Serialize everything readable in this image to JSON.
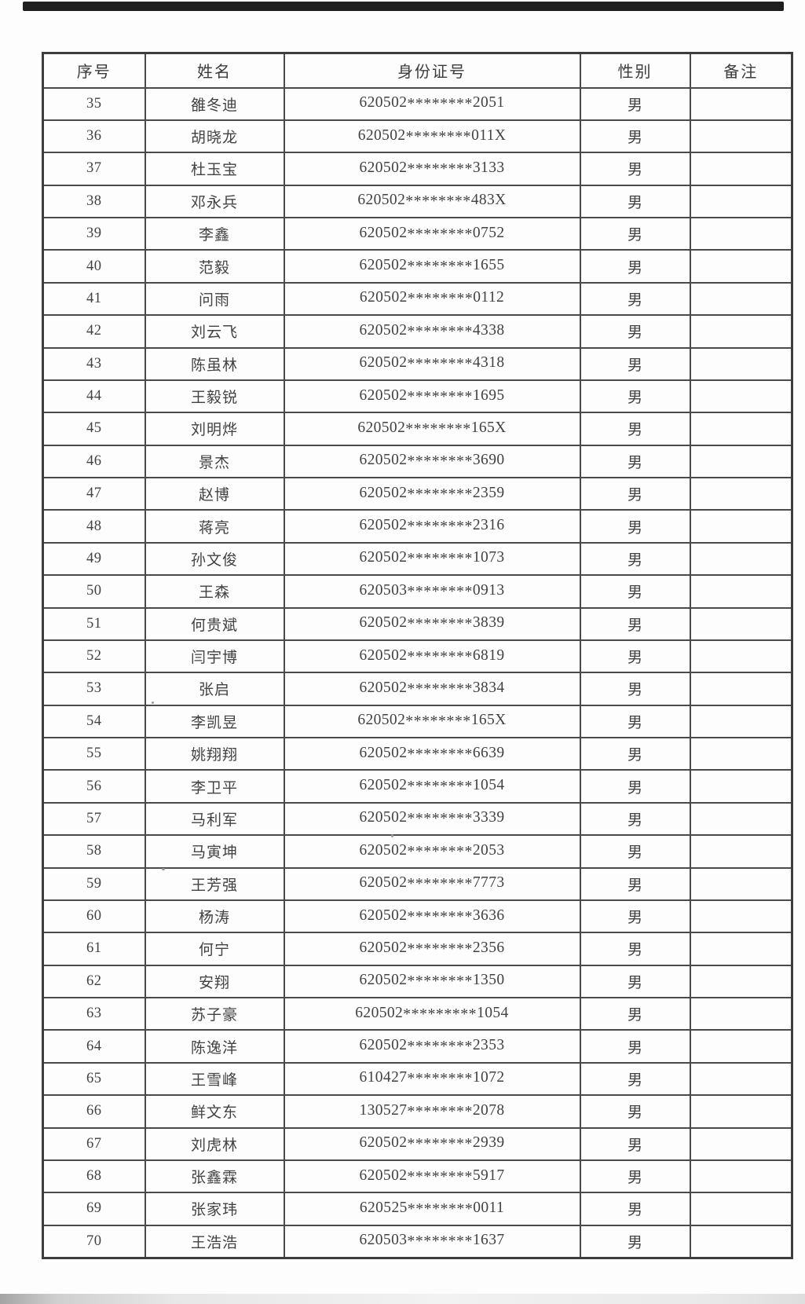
{
  "table": {
    "headers": [
      "序号",
      "姓名",
      "身份证号",
      "性别",
      "备注"
    ],
    "rows": [
      {
        "no": "35",
        "name": "雒冬迪",
        "id": "620502********2051",
        "gender": "男",
        "remark": ""
      },
      {
        "no": "36",
        "name": "胡晓龙",
        "id": "620502********011X",
        "gender": "男",
        "remark": ""
      },
      {
        "no": "37",
        "name": "杜玉宝",
        "id": "620502********3133",
        "gender": "男",
        "remark": ""
      },
      {
        "no": "38",
        "name": "邓永兵",
        "id": "620502********483X",
        "gender": "男",
        "remark": ""
      },
      {
        "no": "39",
        "name": "李鑫",
        "id": "620502********0752",
        "gender": "男",
        "remark": ""
      },
      {
        "no": "40",
        "name": "范毅",
        "id": "620502********1655",
        "gender": "男",
        "remark": ""
      },
      {
        "no": "41",
        "name": "问雨",
        "id": "620502********0112",
        "gender": "男",
        "remark": ""
      },
      {
        "no": "42",
        "name": "刘云飞",
        "id": "620502********4338",
        "gender": "男",
        "remark": ""
      },
      {
        "no": "43",
        "name": "陈虽林",
        "id": "620502********4318",
        "gender": "男",
        "remark": ""
      },
      {
        "no": "44",
        "name": "王毅锐",
        "id": "620502********1695",
        "gender": "男",
        "remark": ""
      },
      {
        "no": "45",
        "name": "刘明烨",
        "id": "620502********165X",
        "gender": "男",
        "remark": ""
      },
      {
        "no": "46",
        "name": "景杰",
        "id": "620502********3690",
        "gender": "男",
        "remark": ""
      },
      {
        "no": "47",
        "name": "赵博",
        "id": "620502********2359",
        "gender": "男",
        "remark": ""
      },
      {
        "no": "48",
        "name": "蒋亮",
        "id": "620502********2316",
        "gender": "男",
        "remark": ""
      },
      {
        "no": "49",
        "name": "孙文俊",
        "id": "620502********1073",
        "gender": "男",
        "remark": ""
      },
      {
        "no": "50",
        "name": "王森",
        "id": "620503********0913",
        "gender": "男",
        "remark": ""
      },
      {
        "no": "51",
        "name": "何贵斌",
        "id": "620502********3839",
        "gender": "男",
        "remark": ""
      },
      {
        "no": "52",
        "name": "闫宇博",
        "id": "620502********6819",
        "gender": "男",
        "remark": ""
      },
      {
        "no": "53",
        "name": "张启",
        "id": "620502********3834",
        "gender": "男",
        "remark": ""
      },
      {
        "no": "54",
        "name": "李凯昱",
        "id": "620502********165X",
        "gender": "男",
        "remark": ""
      },
      {
        "no": "55",
        "name": "姚翔翔",
        "id": "620502********6639",
        "gender": "男",
        "remark": ""
      },
      {
        "no": "56",
        "name": "李卫平",
        "id": "620502********1054",
        "gender": "男",
        "remark": ""
      },
      {
        "no": "57",
        "name": "马利军",
        "id": "620502********3339",
        "gender": "男",
        "remark": ""
      },
      {
        "no": "58",
        "name": "马寅坤",
        "id": "620502********2053",
        "gender": "男",
        "remark": ""
      },
      {
        "no": "59",
        "name": "王芳强",
        "id": "620502********7773",
        "gender": "男",
        "remark": ""
      },
      {
        "no": "60",
        "name": "杨涛",
        "id": "620502********3636",
        "gender": "男",
        "remark": ""
      },
      {
        "no": "61",
        "name": "何宁",
        "id": "620502********2356",
        "gender": "男",
        "remark": ""
      },
      {
        "no": "62",
        "name": "安翔",
        "id": "620502********1350",
        "gender": "男",
        "remark": ""
      },
      {
        "no": "63",
        "name": "苏子豪",
        "id": "620502*********1054",
        "gender": "男",
        "remark": ""
      },
      {
        "no": "64",
        "name": "陈逸洋",
        "id": "620502********2353",
        "gender": "男",
        "remark": ""
      },
      {
        "no": "65",
        "name": "王雪峰",
        "id": "610427********1072",
        "gender": "男",
        "remark": ""
      },
      {
        "no": "66",
        "name": "鲜文东",
        "id": "130527********2078",
        "gender": "男",
        "remark": ""
      },
      {
        "no": "67",
        "name": "刘虎林",
        "id": "620502********2939",
        "gender": "男",
        "remark": ""
      },
      {
        "no": "68",
        "name": "张鑫霖",
        "id": "620502********5917",
        "gender": "男",
        "remark": ""
      },
      {
        "no": "69",
        "name": "张家玮",
        "id": "620525********0011",
        "gender": "男",
        "remark": ""
      },
      {
        "no": "70",
        "name": "王浩浩",
        "id": "620503********1637",
        "gender": "男",
        "remark": ""
      }
    ]
  }
}
